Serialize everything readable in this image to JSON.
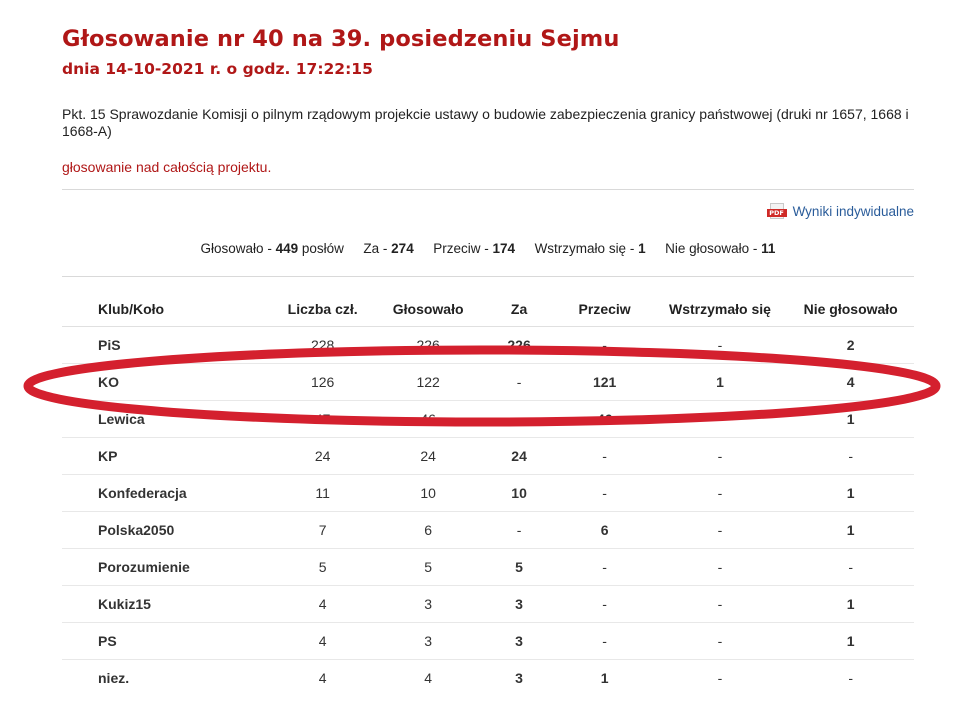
{
  "header": {
    "title": "Głosowanie nr 40 na 39. posiedzeniu Sejmu",
    "subtitle": "dnia 14-10-2021 r. o godz. 17:22:15"
  },
  "description": "Pkt. 15 Sprawozdanie Komisji o pilnym rządowym projekcie ustawy o budowie zabezpieczenia granicy państwowej (druki nr 1657, 1668 i 1668-A)",
  "subject": "głosowanie nad całością projektu.",
  "pdf_link": {
    "icon": "pdf-icon",
    "icon_text": "PDF",
    "label": "Wyniki indywidualne"
  },
  "summary": {
    "voted_label": "Głosowało - ",
    "voted_value": "449",
    "voted_suffix": " posłów",
    "yes_label": "Za - ",
    "yes_value": "274",
    "no_label": "Przeciw - ",
    "no_value": "174",
    "abstain_label": "Wstrzymało się - ",
    "abstain_value": "1",
    "absent_label": "Nie głosowało - ",
    "absent_value": "11"
  },
  "table": {
    "headers": [
      "Klub/Koło",
      "Liczba czł.",
      "Głosowało",
      "Za",
      "Przeciw",
      "Wstrzymało się",
      "Nie głosowało"
    ],
    "rows": [
      [
        "PiS",
        "228",
        "226",
        "226",
        "-",
        "-",
        "2"
      ],
      [
        "KO",
        "126",
        "122",
        "-",
        "121",
        "1",
        "4"
      ],
      [
        "Lewica",
        "47",
        "46",
        "-",
        "46",
        "-",
        "1"
      ],
      [
        "KP",
        "24",
        "24",
        "24",
        "-",
        "-",
        "-"
      ],
      [
        "Konfederacja",
        "11",
        "10",
        "10",
        "-",
        "-",
        "1"
      ],
      [
        "Polska2050",
        "7",
        "6",
        "-",
        "6",
        "-",
        "1"
      ],
      [
        "Porozumienie",
        "5",
        "5",
        "5",
        "-",
        "-",
        "-"
      ],
      [
        "Kukiz15",
        "4",
        "3",
        "3",
        "-",
        "-",
        "1"
      ],
      [
        "PS",
        "4",
        "3",
        "3",
        "-",
        "-",
        "1"
      ],
      [
        "niez.",
        "4",
        "4",
        "3",
        "1",
        "-",
        "-"
      ]
    ]
  },
  "colors": {
    "title_red": "#b01717",
    "link_blue": "#2a4f8a",
    "annotation_red": "#d4202e"
  }
}
